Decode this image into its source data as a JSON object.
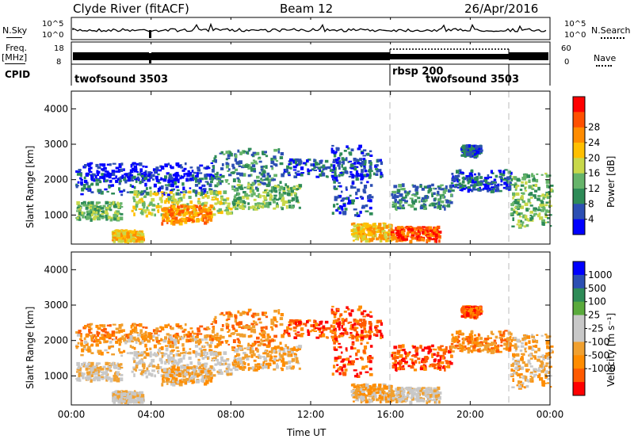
{
  "header": {
    "title": "Clyde River (fitACF)",
    "beam": "Beam 12",
    "date": "26/Apr/2016"
  },
  "strip": {
    "nsky_label": "N.Sky",
    "nsky_ticks": [
      "10^5",
      "10^0"
    ],
    "nsearch_label": "N.Search",
    "nsearch_ticks": [
      "10^5",
      "10^0"
    ],
    "freq_label": "Freq.",
    "freq_unit": "[MHz]",
    "freq_ticks": [
      "18",
      "8"
    ],
    "nave_label": "Nave",
    "nave_ticks": [
      "60",
      "0"
    ],
    "cpid_label": "CPID",
    "cpid_modes": [
      {
        "label": "twofsound 3503",
        "start_h": 0
      },
      {
        "label": "rbsp 200",
        "start_h": 16
      },
      {
        "label": "twofsound 3503",
        "start_h": 22
      }
    ]
  },
  "colors": {
    "power": [
      "#0000ff",
      "#2c4fb3",
      "#2e8b57",
      "#66b46a",
      "#c8d84a",
      "#ffbf00",
      "#ff8c00",
      "#ff5000",
      "#ff0000"
    ],
    "velocity": [
      "#ff0000",
      "#ff5a00",
      "#ff8c00",
      "#f0a030",
      "#c8c8c8",
      "#c8c8c8",
      "#5aaa3c",
      "#2e8b57",
      "#2c4fb3",
      "#0000ff"
    ]
  },
  "chart_data": [
    {
      "type": "heatmap",
      "title": "",
      "xlabel": "",
      "ylabel": "Slant Range [km]",
      "xlim": [
        0,
        24
      ],
      "ylim": [
        180,
        4500
      ],
      "x_ticks": [
        "00:00",
        "04:00",
        "08:00",
        "12:00",
        "16:00",
        "20:00",
        "00:00"
      ],
      "y_ticks": [
        1000,
        2000,
        3000,
        4000
      ],
      "colorbar": {
        "label": "Power [dB]",
        "ticks": [
          4,
          8,
          12,
          16,
          20,
          24,
          28
        ]
      }
    },
    {
      "type": "heatmap",
      "title": "",
      "xlabel": "Time UT",
      "ylabel": "Slant Range [km]",
      "xlim": [
        0,
        24
      ],
      "ylim": [
        180,
        4500
      ],
      "x_ticks": [
        "00:00",
        "04:00",
        "08:00",
        "12:00",
        "16:00",
        "20:00",
        "00:00"
      ],
      "y_ticks": [
        1000,
        2000,
        3000,
        4000
      ],
      "colorbar": {
        "label": "Velocity [m s⁻¹]",
        "ticks": [
          1000,
          500,
          100,
          25,
          -25,
          -100,
          -500,
          -1000
        ]
      }
    }
  ]
}
